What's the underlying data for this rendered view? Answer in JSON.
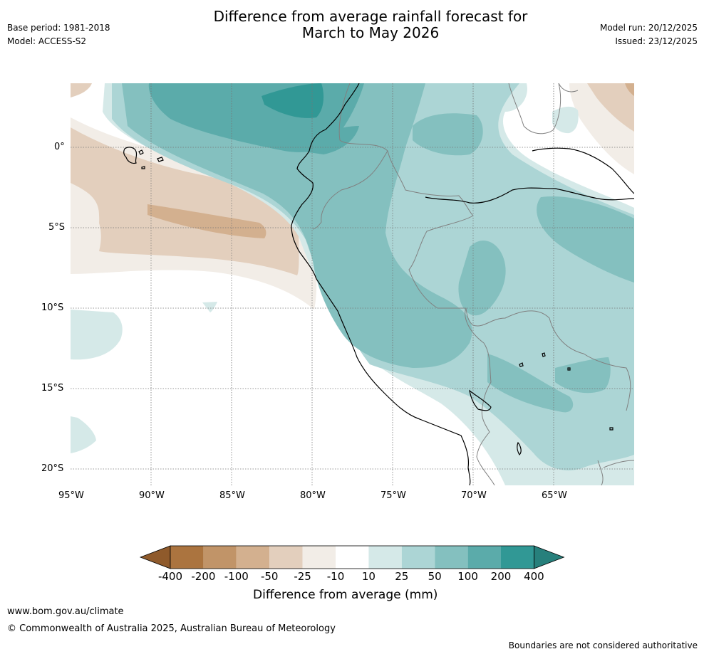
{
  "title": {
    "line1": "Difference from average rainfall forecast for",
    "line2": "March to May 2026"
  },
  "header_left": {
    "base_period": "Base period: 1981-2018",
    "model": "Model: ACCESS-S2"
  },
  "header_right": {
    "model_run": "Model run: 20/12/2025",
    "issued": "Issued: 23/12/2025"
  },
  "map": {
    "lat_labels": [
      "0°",
      "5°S",
      "10°S",
      "15°S",
      "20°S"
    ],
    "lon_labels": [
      "95°W",
      "90°W",
      "85°W",
      "80°W",
      "75°W",
      "70°W",
      "65°W"
    ]
  },
  "colorbar": {
    "ticks": [
      "-400",
      "-200",
      "-100",
      "-50",
      "-25",
      "-10",
      "10",
      "25",
      "50",
      "100",
      "200",
      "400"
    ],
    "colors": [
      "#8f5a2b",
      "#ab743f",
      "#c19468",
      "#d3b08f",
      "#e3cfbd",
      "#f2ede7",
      "#ffffff",
      "#d5e9e8",
      "#acd5d5",
      "#84c0bf",
      "#5babaa",
      "#319895",
      "#27807c"
    ],
    "title": "Difference from average (mm)"
  },
  "footer": {
    "website": "www.bom.gov.au/climate",
    "copyright": "© Commonwealth of Australia 2025, Australian Bureau of Meteorology",
    "disclaimer": "Boundaries are not considered authoritative"
  }
}
